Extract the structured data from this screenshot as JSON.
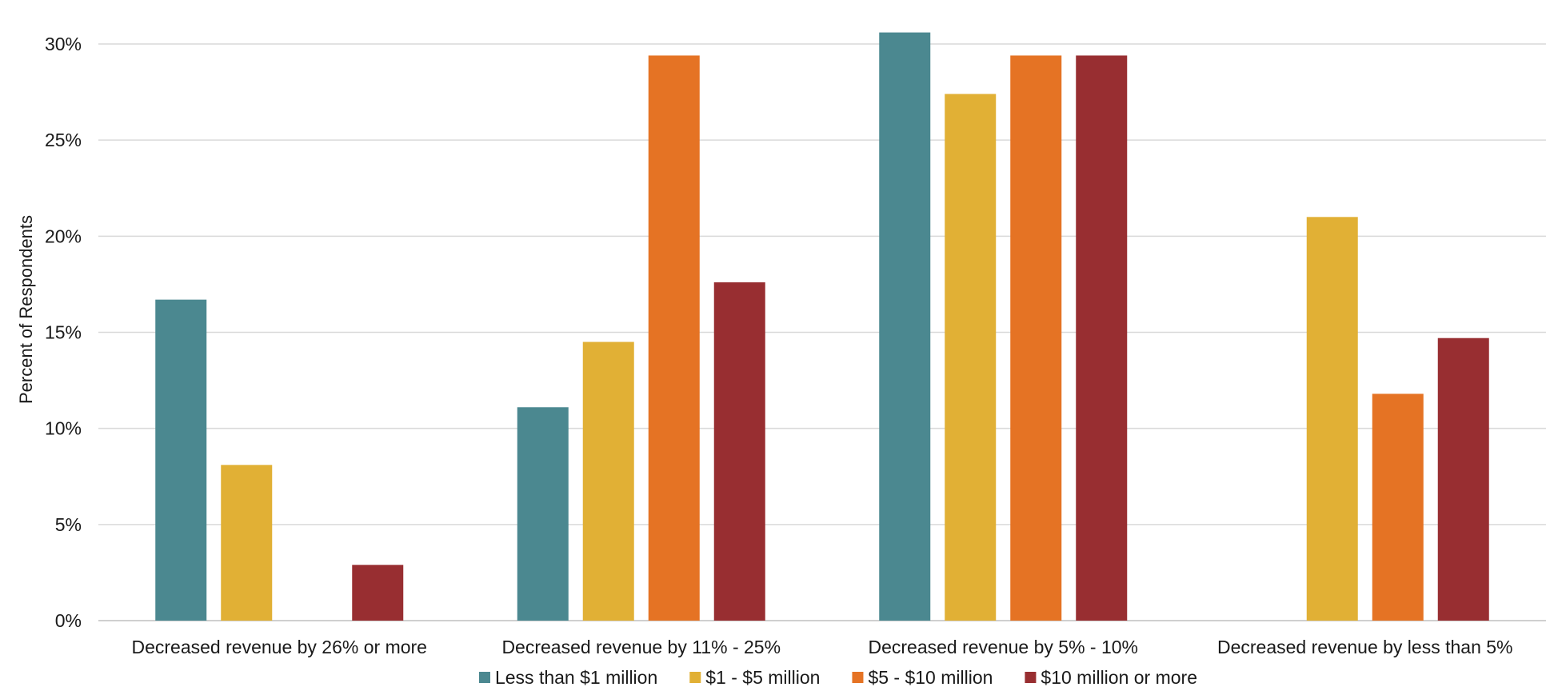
{
  "chart_data": {
    "type": "bar",
    "title": "",
    "xlabel": "",
    "ylabel": "Percent of Respondents",
    "ylim": [
      0,
      30
    ],
    "yticks": [
      0,
      5,
      10,
      15,
      20,
      25,
      30
    ],
    "ytick_labels": [
      "0%",
      "5%",
      "10%",
      "15%",
      "20%",
      "25%",
      "30%"
    ],
    "grid": true,
    "legend_position": "bottom",
    "categories": [
      "Decreased revenue by 26% or more",
      "Decreased revenue by 11% - 25%",
      "Decreased revenue by 5% - 10%",
      "Decreased revenue by less than 5%"
    ],
    "series": [
      {
        "name": "Less than $1 million",
        "color": "#4b8890",
        "values": [
          16.7,
          11.1,
          30.6,
          0
        ]
      },
      {
        "name": "$1 - $5 million",
        "color": "#e1b035",
        "values": [
          8.1,
          14.5,
          27.4,
          21.0
        ]
      },
      {
        "name": "$5 - $10 million",
        "color": "#e57324",
        "values": [
          0,
          29.4,
          29.4,
          11.8
        ]
      },
      {
        "name": "$10 million or more",
        "color": "#982e31",
        "values": [
          2.9,
          17.6,
          29.4,
          14.7
        ]
      }
    ]
  }
}
